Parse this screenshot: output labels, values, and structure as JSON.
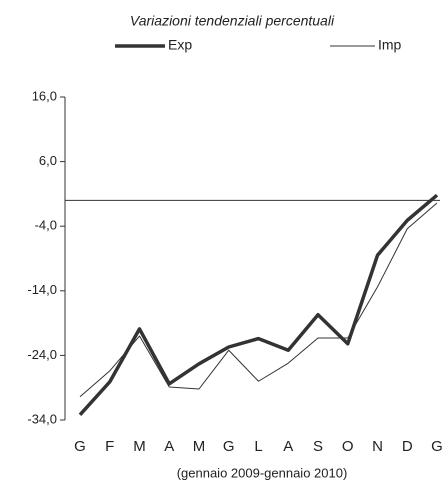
{
  "chart_data": {
    "type": "line",
    "title": "Variazioni tendenziali percentuali",
    "x_label": "(gennaio 2009-gennaio 2010)",
    "categories": [
      "G",
      "F",
      "M",
      "A",
      "M",
      "G",
      "L",
      "A",
      "S",
      "O",
      "N",
      "D",
      "G"
    ],
    "series": [
      {
        "name": "Exp",
        "color": "#333333",
        "values": [
          -33.2,
          -28.1,
          -19.9,
          -28.4,
          -25.3,
          -22.7,
          -21.4,
          -23.2,
          -17.7,
          -22.2,
          -8.5,
          -3.1,
          0.8
        ]
      },
      {
        "name": "Imp",
        "color": "#333333",
        "values": [
          -30.4,
          -26.4,
          -21.0,
          -28.9,
          -29.2,
          -23.2,
          -28.0,
          -25.2,
          -21.3,
          -21.3,
          -13.4,
          -4.4,
          -0.4
        ]
      }
    ],
    "ylim": [
      -34,
      16
    ],
    "yticks": [
      {
        "value": 16,
        "label": "16,0"
      },
      {
        "value": 6,
        "label": "6,0"
      },
      {
        "value": -4,
        "label": "-4,0"
      },
      {
        "value": -14,
        "label": "-14,0"
      },
      {
        "value": -24,
        "label": "-24,0"
      },
      {
        "value": -34,
        "label": "-34,0"
      }
    ]
  }
}
